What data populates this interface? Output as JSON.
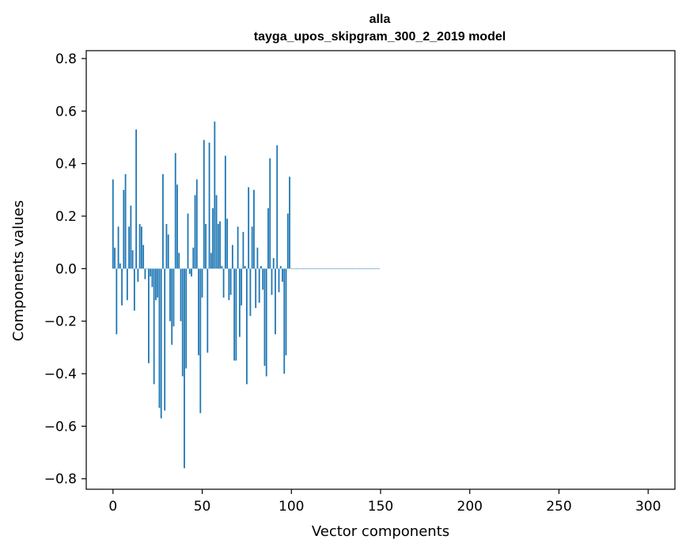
{
  "chart_data": {
    "type": "bar",
    "title": "alla",
    "subtitle": "tayga_upos_skipgram_300_2_2019 model",
    "xlabel": "Vector components",
    "ylabel": "Components values",
    "xlim": [
      -15,
      315
    ],
    "ylim": [
      -0.84,
      0.83
    ],
    "xticks": [
      0,
      50,
      100,
      150,
      200,
      250,
      300
    ],
    "yticks": [
      -0.8,
      -0.6,
      -0.4,
      -0.2,
      0.0,
      0.2,
      0.4,
      0.6,
      0.8
    ],
    "xtick_labels": [
      "0",
      "50",
      "100",
      "150",
      "200",
      "250",
      "300"
    ],
    "ytick_labels": [
      "−0.8",
      "−0.6",
      "−0.4",
      "−0.2",
      "0.0",
      "0.2",
      "0.4",
      "0.6",
      "0.8"
    ],
    "bar_color": "#1f77b4",
    "grid": false,
    "series": [
      {
        "x_start": 0,
        "values": [
          0.34,
          0.08,
          -0.25,
          0.16,
          0.02,
          -0.14,
          0.3,
          0.36,
          -0.12,
          0.16,
          0.24,
          0.07,
          -0.16,
          0.53,
          -0.05,
          0.17,
          0.16,
          0.09,
          -0.04,
          0.0,
          -0.36,
          -0.03,
          -0.07,
          -0.44,
          -0.12,
          -0.11,
          -0.53,
          -0.57,
          0.36,
          -0.54,
          0.17,
          0.13,
          -0.2,
          -0.29,
          -0.22,
          0.44,
          0.32,
          0.06,
          -0.2,
          -0.41,
          -0.76,
          -0.38,
          0.21,
          -0.02,
          -0.03,
          0.08,
          0.28,
          0.34,
          -0.33,
          -0.55,
          -0.11,
          0.49,
          0.17,
          -0.32,
          0.48,
          0.06,
          0.23,
          0.56,
          0.28,
          0.17,
          0.18,
          0.01,
          -0.11,
          0.43,
          0.19,
          -0.12,
          -0.1,
          0.09,
          -0.35,
          -0.35,
          0.16,
          -0.26,
          -0.14,
          0.14,
          0.01,
          -0.44,
          0.31,
          -0.18,
          0.16,
          0.3,
          -0.15,
          0.08,
          -0.13,
          0.01,
          -0.08,
          -0.37,
          -0.41,
          0.23,
          0.42,
          -0.1,
          0.04,
          -0.25,
          0.47,
          -0.09,
          0.01,
          -0.05,
          -0.4,
          -0.33,
          0.21,
          0.35,
          0.0,
          0.0,
          0.0,
          0.0,
          0.0,
          0.0,
          0.0,
          0.0,
          0.0,
          0.0,
          0.0,
          0.0,
          0.0,
          0.0,
          0.0,
          0.0,
          0.0,
          0.0,
          0.0,
          0.0,
          0.0,
          0.0,
          0.0,
          0.0,
          0.0,
          0.0,
          0.0,
          0.0,
          0.0,
          0.0,
          0.0,
          0.0,
          0.0,
          0.0,
          0.0,
          0.0,
          0.0,
          0.0,
          0.0,
          0.0,
          0.0,
          0.0,
          0.0,
          0.0,
          0.0,
          0.0,
          0.0,
          0.0,
          0.0,
          0.0
        ]
      }
    ]
  }
}
